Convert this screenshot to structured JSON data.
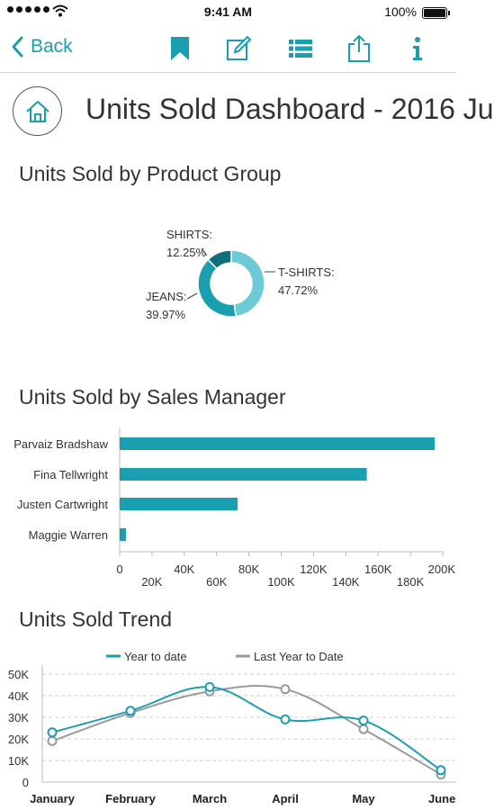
{
  "status_bar": {
    "time": "9:41 AM",
    "battery": "100%"
  },
  "nav": {
    "back_label": "Back"
  },
  "page": {
    "title": "Units Sold Dashboard - 2016 Ju"
  },
  "colors": {
    "accent": "#1a9fb0",
    "shirts": "#0f6f7f",
    "jeans": "#1a9fb0",
    "tshirts": "#6ccad6",
    "gray": "#9a9a9a"
  },
  "sections": {
    "product_group": "Units Sold by Product Group",
    "sales_manager": "Units Sold by Sales Manager",
    "trend": "Units Sold Trend"
  },
  "chart_data": [
    {
      "type": "pie",
      "title": "Units Sold by Product Group",
      "slices": [
        {
          "label": "T-SHIRTS:",
          "pct_label": "47.72%",
          "value": 47.72
        },
        {
          "label": "JEANS:",
          "pct_label": "39.97%",
          "value": 39.97
        },
        {
          "label": "SHIRTS:",
          "pct_label": "12.25%",
          "value": 12.25
        }
      ]
    },
    {
      "type": "bar",
      "orientation": "horizontal",
      "title": "Units Sold by Sales Manager",
      "categories": [
        "Parvaiz Bradshaw",
        "Fina Tellwright",
        "Justen Cartwright",
        "Maggie Warren"
      ],
      "values": [
        195000,
        153000,
        73000,
        4000
      ],
      "xlim": [
        0,
        200000
      ],
      "ticks": [
        {
          "value": 0,
          "label": "0"
        },
        {
          "value": 20000,
          "label": "20K"
        },
        {
          "value": 40000,
          "label": "40K"
        },
        {
          "value": 60000,
          "label": "60K"
        },
        {
          "value": 80000,
          "label": "80K"
        },
        {
          "value": 100000,
          "label": "100K"
        },
        {
          "value": 120000,
          "label": "120K"
        },
        {
          "value": 140000,
          "label": "140K"
        },
        {
          "value": 160000,
          "label": "160K"
        },
        {
          "value": 180000,
          "label": "180K"
        },
        {
          "value": 200000,
          "label": "200K"
        }
      ]
    },
    {
      "type": "line",
      "title": "Units Sold Trend",
      "categories": [
        "January",
        "February",
        "March",
        "April",
        "May",
        "June"
      ],
      "ylim": [
        0,
        50000
      ],
      "yticks": [
        {
          "value": 0,
          "label": "0"
        },
        {
          "value": 10000,
          "label": "10K"
        },
        {
          "value": 20000,
          "label": "20K"
        },
        {
          "value": 30000,
          "label": "30K"
        },
        {
          "value": 40000,
          "label": "40K"
        },
        {
          "value": 50000,
          "label": "50K"
        }
      ],
      "grid": true,
      "legend": "top",
      "series": [
        {
          "name": "Year to date",
          "values": [
            23000,
            33000,
            44000,
            29000,
            28500,
            5500
          ]
        },
        {
          "name": "Last Year to Date",
          "values": [
            19000,
            32000,
            42000,
            43000,
            24500,
            3500
          ]
        }
      ]
    }
  ]
}
